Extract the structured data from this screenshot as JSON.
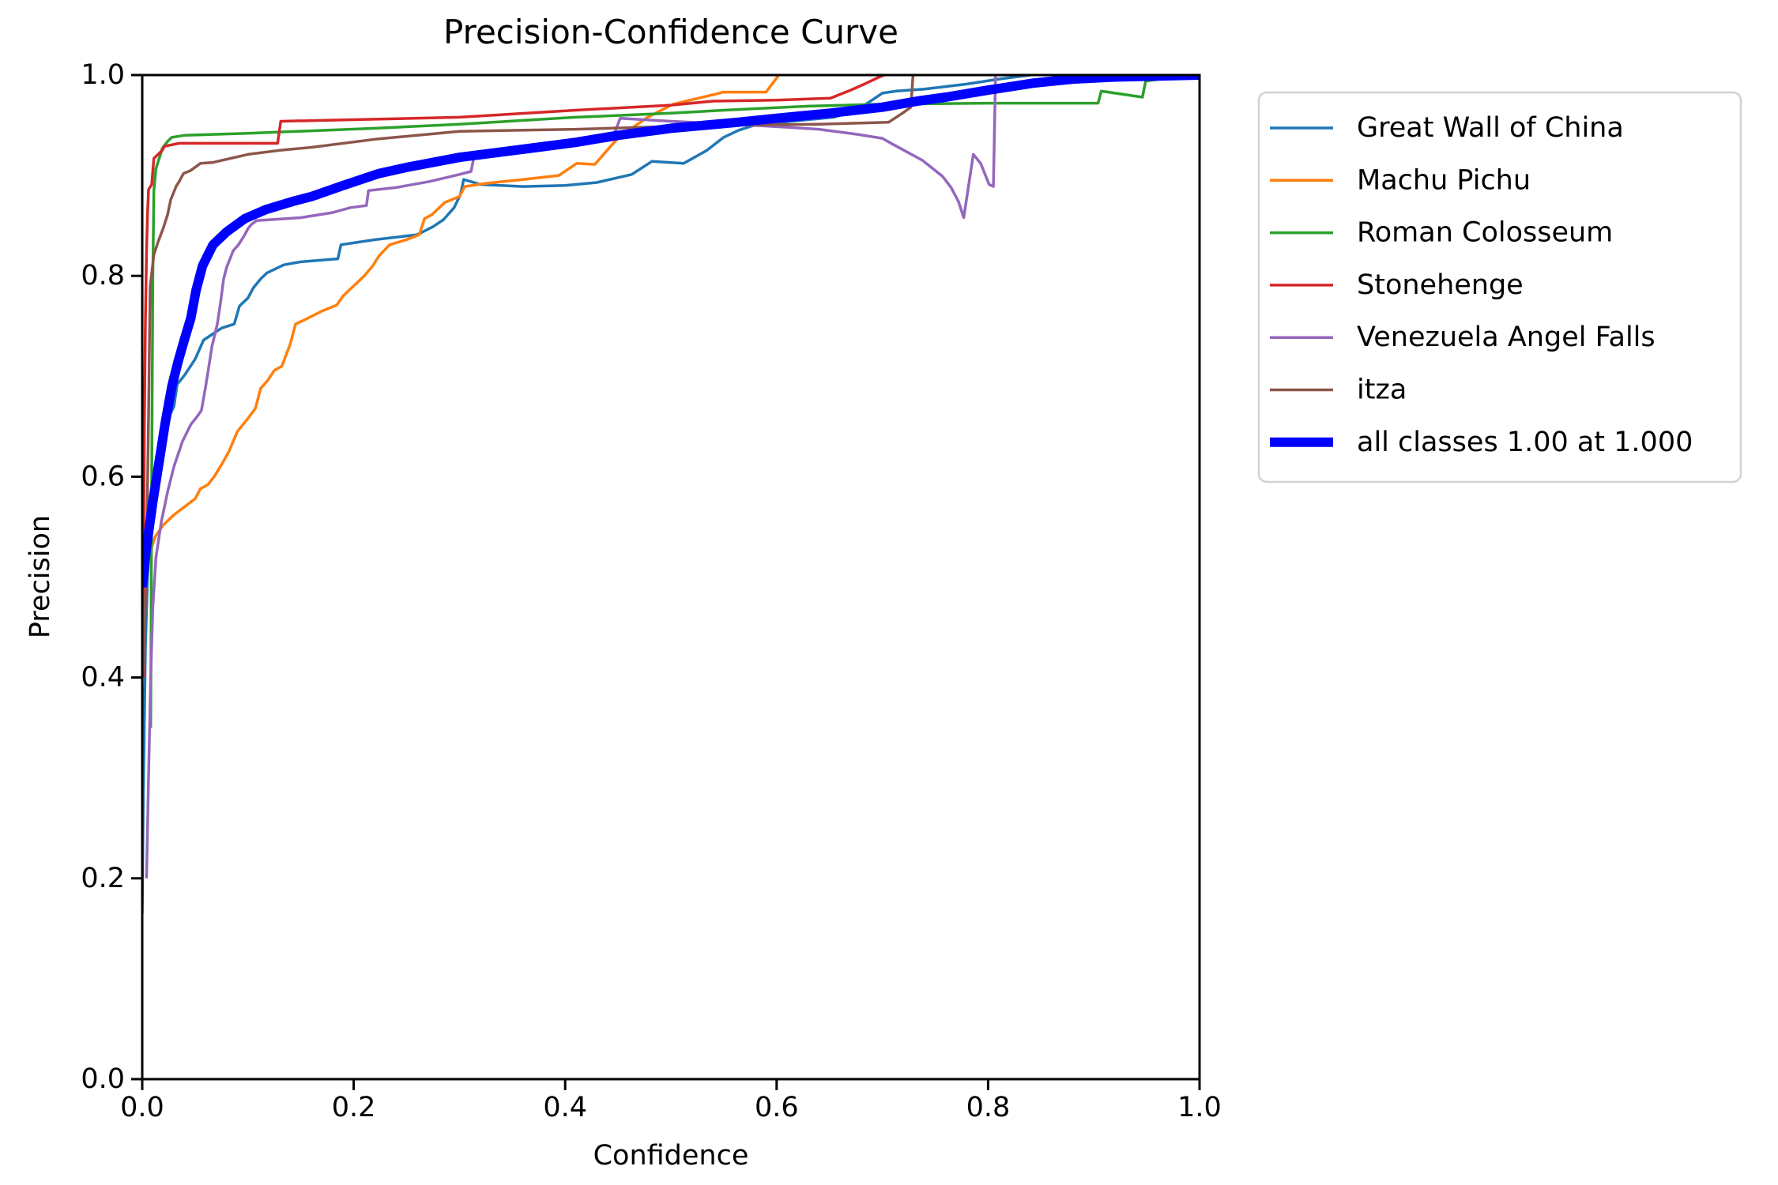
{
  "chart_data": {
    "type": "line",
    "title": "Precision-Confidence Curve",
    "xlabel": "Confidence",
    "ylabel": "Precision",
    "xlim": [
      0,
      1
    ],
    "ylim": [
      0,
      1
    ],
    "grid": false,
    "legend_position": "outside-right",
    "axis_color": "#000000",
    "background_color": "#ffffff",
    "legend_border_color": "#d2d2d2",
    "x_tick_labels": [
      "0.0",
      "0.2",
      "0.4",
      "0.6",
      "0.8",
      "1.0"
    ],
    "x_tick_values": [
      0,
      0.2,
      0.4,
      0.6,
      0.8,
      1.0
    ],
    "y_tick_labels": [
      "0.0",
      "0.2",
      "0.4",
      "0.6",
      "0.8",
      "1.0"
    ],
    "y_tick_values": [
      0,
      0.2,
      0.4,
      0.6,
      0.8,
      1.0
    ],
    "series": [
      {
        "name": "Great Wall of China",
        "slug": "great-wall-of-china",
        "color": "#1f77b4",
        "width": 3.5,
        "points": [
          [
            0,
            0.165
          ],
          [
            0.001,
            0.28
          ],
          [
            0.003,
            0.43
          ],
          [
            0.005,
            0.5
          ],
          [
            0.008,
            0.555
          ],
          [
            0.012,
            0.6
          ],
          [
            0.017,
            0.632
          ],
          [
            0.022,
            0.652
          ],
          [
            0.03,
            0.67
          ],
          [
            0.033,
            0.692
          ],
          [
            0.04,
            0.701
          ],
          [
            0.05,
            0.717
          ],
          [
            0.058,
            0.736
          ],
          [
            0.075,
            0.748
          ],
          [
            0.087,
            0.752
          ],
          [
            0.092,
            0.77
          ],
          [
            0.1,
            0.778
          ],
          [
            0.105,
            0.788
          ],
          [
            0.112,
            0.797
          ],
          [
            0.118,
            0.803
          ],
          [
            0.126,
            0.807
          ],
          [
            0.134,
            0.811
          ],
          [
            0.15,
            0.814
          ],
          [
            0.185,
            0.817
          ],
          [
            0.188,
            0.831
          ],
          [
            0.22,
            0.836
          ],
          [
            0.26,
            0.841
          ],
          [
            0.275,
            0.849
          ],
          [
            0.285,
            0.856
          ],
          [
            0.295,
            0.868
          ],
          [
            0.301,
            0.881
          ],
          [
            0.304,
            0.896
          ],
          [
            0.32,
            0.891
          ],
          [
            0.36,
            0.889
          ],
          [
            0.4,
            0.89
          ],
          [
            0.43,
            0.893
          ],
          [
            0.463,
            0.901
          ],
          [
            0.482,
            0.914
          ],
          [
            0.512,
            0.912
          ],
          [
            0.534,
            0.925
          ],
          [
            0.55,
            0.938
          ],
          [
            0.564,
            0.945
          ],
          [
            0.579,
            0.95
          ],
          [
            0.614,
            0.954
          ],
          [
            0.654,
            0.958
          ],
          [
            0.676,
            0.965
          ],
          [
            0.7,
            0.982
          ],
          [
            0.713,
            0.984
          ],
          [
            0.74,
            0.986
          ],
          [
            0.78,
            0.991
          ],
          [
            0.81,
            0.996
          ],
          [
            0.84,
            1.0
          ]
        ]
      },
      {
        "name": "Machu Pichu",
        "slug": "machu-pichu",
        "color": "#ff7f0e",
        "width": 3.5,
        "points": [
          [
            0,
            0.45
          ],
          [
            0.003,
            0.5
          ],
          [
            0.006,
            0.52
          ],
          [
            0.012,
            0.54
          ],
          [
            0.02,
            0.552
          ],
          [
            0.03,
            0.562
          ],
          [
            0.04,
            0.57
          ],
          [
            0.05,
            0.578
          ],
          [
            0.055,
            0.588
          ],
          [
            0.062,
            0.592
          ],
          [
            0.068,
            0.6
          ],
          [
            0.075,
            0.612
          ],
          [
            0.082,
            0.625
          ],
          [
            0.09,
            0.645
          ],
          [
            0.1,
            0.658
          ],
          [
            0.107,
            0.668
          ],
          [
            0.112,
            0.688
          ],
          [
            0.118,
            0.695
          ],
          [
            0.125,
            0.706
          ],
          [
            0.132,
            0.71
          ],
          [
            0.14,
            0.732
          ],
          [
            0.145,
            0.752
          ],
          [
            0.155,
            0.757
          ],
          [
            0.17,
            0.765
          ],
          [
            0.184,
            0.771
          ],
          [
            0.19,
            0.78
          ],
          [
            0.2,
            0.79
          ],
          [
            0.21,
            0.8
          ],
          [
            0.218,
            0.81
          ],
          [
            0.224,
            0.82
          ],
          [
            0.234,
            0.831
          ],
          [
            0.25,
            0.836
          ],
          [
            0.262,
            0.841
          ],
          [
            0.267,
            0.857
          ],
          [
            0.274,
            0.861
          ],
          [
            0.286,
            0.873
          ],
          [
            0.3,
            0.879
          ],
          [
            0.305,
            0.889
          ],
          [
            0.324,
            0.892
          ],
          [
            0.36,
            0.896
          ],
          [
            0.394,
            0.9
          ],
          [
            0.411,
            0.912
          ],
          [
            0.428,
            0.911
          ],
          [
            0.443,
            0.929
          ],
          [
            0.45,
            0.937
          ],
          [
            0.46,
            0.945
          ],
          [
            0.478,
            0.958
          ],
          [
            0.502,
            0.971
          ],
          [
            0.546,
            0.982
          ],
          [
            0.549,
            0.983
          ],
          [
            0.59,
            0.983
          ],
          [
            0.595,
            0.99
          ],
          [
            0.602,
            1.0
          ]
        ]
      },
      {
        "name": "Roman Colosseum",
        "slug": "roman-colosseum",
        "color": "#2ca02c",
        "width": 3.5,
        "points": [
          [
            0.008,
            0.35
          ],
          [
            0.009,
            0.6
          ],
          [
            0.01,
            0.8
          ],
          [
            0.011,
            0.885
          ],
          [
            0.013,
            0.907
          ],
          [
            0.017,
            0.92
          ],
          [
            0.019,
            0.927
          ],
          [
            0.024,
            0.934
          ],
          [
            0.028,
            0.938
          ],
          [
            0.04,
            0.94
          ],
          [
            0.1,
            0.942
          ],
          [
            0.22,
            0.947
          ],
          [
            0.3,
            0.951
          ],
          [
            0.41,
            0.958
          ],
          [
            0.5,
            0.962
          ],
          [
            0.55,
            0.965
          ],
          [
            0.63,
            0.969
          ],
          [
            0.7,
            0.971
          ],
          [
            0.8,
            0.972
          ],
          [
            0.904,
            0.972
          ],
          [
            0.907,
            0.984
          ],
          [
            0.92,
            0.982
          ],
          [
            0.946,
            0.978
          ],
          [
            0.949,
            0.994
          ],
          [
            0.97,
            0.997
          ],
          [
            1.0,
            1.0
          ]
        ]
      },
      {
        "name": "Stonehenge",
        "slug": "stonehenge",
        "color": "#d62728",
        "width": 3.5,
        "points": [
          [
            0.001,
            0.4
          ],
          [
            0.0015,
            0.55
          ],
          [
            0.002,
            0.65
          ],
          [
            0.003,
            0.755
          ],
          [
            0.004,
            0.823
          ],
          [
            0.005,
            0.862
          ],
          [
            0.006,
            0.886
          ],
          [
            0.009,
            0.891
          ],
          [
            0.011,
            0.917
          ],
          [
            0.019,
            0.925
          ],
          [
            0.021,
            0.929
          ],
          [
            0.035,
            0.932
          ],
          [
            0.128,
            0.932
          ],
          [
            0.131,
            0.954
          ],
          [
            0.22,
            0.956
          ],
          [
            0.3,
            0.958
          ],
          [
            0.41,
            0.965
          ],
          [
            0.5,
            0.97
          ],
          [
            0.54,
            0.974
          ],
          [
            0.6,
            0.975
          ],
          [
            0.651,
            0.977
          ],
          [
            0.67,
            0.985
          ],
          [
            0.683,
            0.991
          ],
          [
            0.697,
            0.998
          ],
          [
            0.702,
            1.0
          ]
        ]
      },
      {
        "name": "Venezuela Angel Falls",
        "slug": "venezuela-angel-falls",
        "color": "#9467bd",
        "width": 3.5,
        "points": [
          [
            0.004,
            0.2
          ],
          [
            0.006,
            0.3
          ],
          [
            0.008,
            0.4
          ],
          [
            0.01,
            0.47
          ],
          [
            0.013,
            0.52
          ],
          [
            0.018,
            0.555
          ],
          [
            0.024,
            0.585
          ],
          [
            0.03,
            0.61
          ],
          [
            0.038,
            0.635
          ],
          [
            0.046,
            0.652
          ],
          [
            0.052,
            0.66
          ],
          [
            0.056,
            0.666
          ],
          [
            0.06,
            0.69
          ],
          [
            0.066,
            0.73
          ],
          [
            0.071,
            0.752
          ],
          [
            0.074,
            0.773
          ],
          [
            0.077,
            0.797
          ],
          [
            0.08,
            0.809
          ],
          [
            0.083,
            0.817
          ],
          [
            0.086,
            0.825
          ],
          [
            0.091,
            0.831
          ],
          [
            0.097,
            0.841
          ],
          [
            0.1,
            0.847
          ],
          [
            0.103,
            0.851
          ],
          [
            0.108,
            0.855
          ],
          [
            0.15,
            0.858
          ],
          [
            0.18,
            0.863
          ],
          [
            0.197,
            0.868
          ],
          [
            0.212,
            0.87
          ],
          [
            0.214,
            0.885
          ],
          [
            0.24,
            0.888
          ],
          [
            0.272,
            0.894
          ],
          [
            0.3,
            0.901
          ],
          [
            0.311,
            0.904
          ],
          [
            0.314,
            0.92
          ],
          [
            0.374,
            0.928
          ],
          [
            0.42,
            0.933
          ],
          [
            0.446,
            0.94
          ],
          [
            0.452,
            0.957
          ],
          [
            0.5,
            0.954
          ],
          [
            0.56,
            0.951
          ],
          [
            0.61,
            0.948
          ],
          [
            0.64,
            0.946
          ],
          [
            0.676,
            0.941
          ],
          [
            0.7,
            0.937
          ],
          [
            0.71,
            0.931
          ],
          [
            0.738,
            0.915
          ],
          [
            0.757,
            0.899
          ],
          [
            0.765,
            0.888
          ],
          [
            0.772,
            0.874
          ],
          [
            0.777,
            0.858
          ],
          [
            0.786,
            0.921
          ],
          [
            0.793,
            0.912
          ],
          [
            0.801,
            0.891
          ],
          [
            0.805,
            0.889
          ],
          [
            0.807,
            1.0
          ]
        ]
      },
      {
        "name": "itza",
        "slug": "itza",
        "color": "#8c564b",
        "width": 3.5,
        "points": [
          [
            0,
            0.4
          ],
          [
            0.002,
            0.44
          ],
          [
            0.004,
            0.52
          ],
          [
            0.006,
            0.66
          ],
          [
            0.0075,
            0.789
          ],
          [
            0.011,
            0.821
          ],
          [
            0.015,
            0.834
          ],
          [
            0.02,
            0.848
          ],
          [
            0.024,
            0.861
          ],
          [
            0.027,
            0.876
          ],
          [
            0.032,
            0.889
          ],
          [
            0.035,
            0.894
          ],
          [
            0.039,
            0.902
          ],
          [
            0.046,
            0.905
          ],
          [
            0.055,
            0.912
          ],
          [
            0.067,
            0.913
          ],
          [
            0.1,
            0.921
          ],
          [
            0.13,
            0.925
          ],
          [
            0.16,
            0.928
          ],
          [
            0.22,
            0.936
          ],
          [
            0.3,
            0.944
          ],
          [
            0.41,
            0.946
          ],
          [
            0.54,
            0.95
          ],
          [
            0.64,
            0.951
          ],
          [
            0.706,
            0.953
          ],
          [
            0.719,
            0.962
          ],
          [
            0.727,
            0.968
          ],
          [
            0.729,
            1.0
          ]
        ]
      },
      {
        "name": "all classes 1.00 at 1.000",
        "slug": "all-classes",
        "color": "#0000ff",
        "width": 12,
        "points": [
          [
            0,
            0.49
          ],
          [
            0.004,
            0.53
          ],
          [
            0.01,
            0.575
          ],
          [
            0.016,
            0.615
          ],
          [
            0.022,
            0.655
          ],
          [
            0.028,
            0.69
          ],
          [
            0.034,
            0.715
          ],
          [
            0.04,
            0.737
          ],
          [
            0.046,
            0.758
          ],
          [
            0.051,
            0.786
          ],
          [
            0.057,
            0.81
          ],
          [
            0.067,
            0.831
          ],
          [
            0.08,
            0.844
          ],
          [
            0.097,
            0.857
          ],
          [
            0.117,
            0.866
          ],
          [
            0.142,
            0.874
          ],
          [
            0.16,
            0.879
          ],
          [
            0.19,
            0.89
          ],
          [
            0.224,
            0.902
          ],
          [
            0.25,
            0.908
          ],
          [
            0.3,
            0.918
          ],
          [
            0.374,
            0.928
          ],
          [
            0.41,
            0.933
          ],
          [
            0.45,
            0.94
          ],
          [
            0.5,
            0.947
          ],
          [
            0.564,
            0.953
          ],
          [
            0.6,
            0.957
          ],
          [
            0.65,
            0.962
          ],
          [
            0.7,
            0.968
          ],
          [
            0.733,
            0.974
          ],
          [
            0.76,
            0.978
          ],
          [
            0.8,
            0.985
          ],
          [
            0.843,
            0.992
          ],
          [
            0.88,
            0.996
          ],
          [
            0.92,
            0.998
          ],
          [
            1.0,
            1.0
          ]
        ]
      }
    ]
  }
}
